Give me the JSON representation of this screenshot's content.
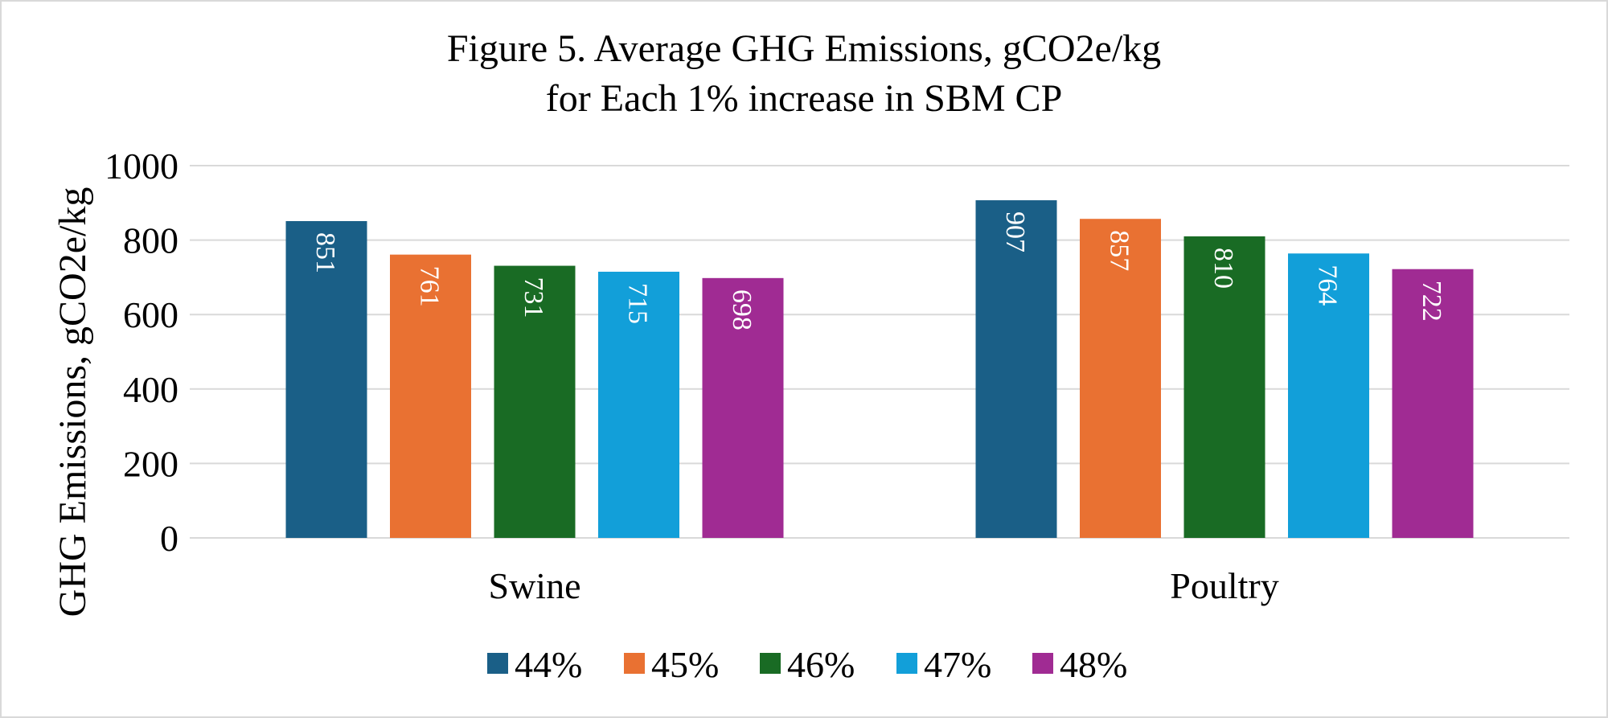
{
  "chart_data": {
    "type": "bar",
    "title": "Figure 5. Average GHG Emissions, gCO2e/kg",
    "subtitle": "for Each 1% increase in SBM CP",
    "xlabel": "",
    "ylabel": "GHG Emissions, gCO2e/kg",
    "ylim": [
      0,
      1000
    ],
    "yticks": [
      0,
      200,
      400,
      600,
      800,
      1000
    ],
    "grid": true,
    "legend_position": "bottom",
    "categories": [
      "Swine",
      "Poultry"
    ],
    "series": [
      {
        "name": "44%",
        "color": "#1a5f87",
        "values": [
          851,
          907
        ]
      },
      {
        "name": "45%",
        "color": "#e97132",
        "values": [
          761,
          857
        ]
      },
      {
        "name": "46%",
        "color": "#196b24",
        "values": [
          731,
          810
        ]
      },
      {
        "name": "47%",
        "color": "#129fd9",
        "values": [
          715,
          764
        ]
      },
      {
        "name": "48%",
        "color": "#a02b93",
        "values": [
          698,
          722
        ]
      }
    ]
  }
}
